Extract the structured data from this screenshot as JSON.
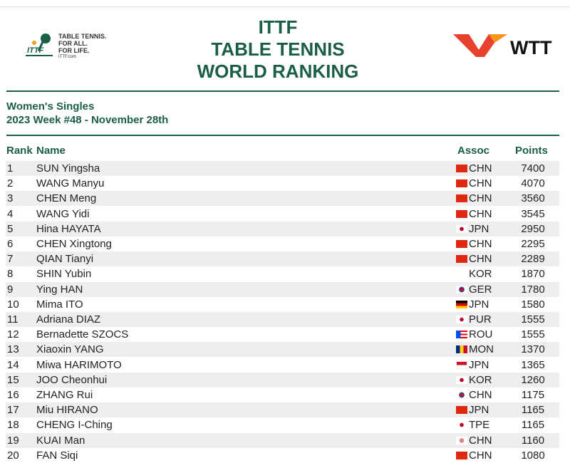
{
  "header": {
    "logo_text": [
      "TABLE TENNIS.",
      "FOR ALL.",
      "FOR LIFE."
    ],
    "logo_url": "ITTF.com",
    "title": [
      "ITTF",
      "TABLE TENNIS",
      "WORLD RANKING"
    ],
    "brand": "WTT"
  },
  "subheader": {
    "event": "Women's Singles",
    "week": "2023 Week #48 - November 28th"
  },
  "table": {
    "columns": [
      "Rank",
      "Name",
      "Assoc",
      "Points"
    ],
    "rows": [
      {
        "rank": 1,
        "name": "SUN Yingsha",
        "assoc": "CHN",
        "points": 7400
      },
      {
        "rank": 2,
        "name": "WANG Manyu",
        "assoc": "CHN",
        "points": 4070
      },
      {
        "rank": 3,
        "name": "CHEN Meng",
        "assoc": "CHN",
        "points": 3560
      },
      {
        "rank": 4,
        "name": "WANG Yidi",
        "assoc": "CHN",
        "points": 3545
      },
      {
        "rank": 5,
        "name": "Hina HAYATA",
        "assoc": "JPN",
        "points": 2950
      },
      {
        "rank": 6,
        "name": "CHEN Xingtong",
        "assoc": "CHN",
        "points": 2295
      },
      {
        "rank": 7,
        "name": "QIAN Tianyi",
        "assoc": "CHN",
        "points": 2289
      },
      {
        "rank": 8,
        "name": "SHIN Yubin",
        "assoc": "KOR",
        "points": 1870
      },
      {
        "rank": 9,
        "name": "Ying HAN",
        "assoc": "GER",
        "points": 1780
      },
      {
        "rank": 10,
        "name": "Mima ITO",
        "assoc": "JPN",
        "points": 1580
      },
      {
        "rank": 11,
        "name": "Adriana DIAZ",
        "assoc": "PUR",
        "points": 1555
      },
      {
        "rank": 12,
        "name": "Bernadette SZOCS",
        "assoc": "ROU",
        "points": 1555
      },
      {
        "rank": 13,
        "name": "Xiaoxin YANG",
        "assoc": "MON",
        "points": 1370
      },
      {
        "rank": 14,
        "name": "Miwa HARIMOTO",
        "assoc": "JPN",
        "points": 1365
      },
      {
        "rank": 15,
        "name": "JOO Cheonhui",
        "assoc": "KOR",
        "points": 1260
      },
      {
        "rank": 16,
        "name": "ZHANG Rui",
        "assoc": "CHN",
        "points": 1175
      },
      {
        "rank": 17,
        "name": "Miu HIRANO",
        "assoc": "JPN",
        "points": 1165
      },
      {
        "rank": 18,
        "name": "CHENG I-Ching",
        "assoc": "TPE",
        "points": 1165
      },
      {
        "rank": 19,
        "name": "KUAI Man",
        "assoc": "CHN",
        "points": 1160
      },
      {
        "rank": 20,
        "name": "FAN Siqi",
        "assoc": "CHN",
        "points": 1080
      }
    ]
  }
}
